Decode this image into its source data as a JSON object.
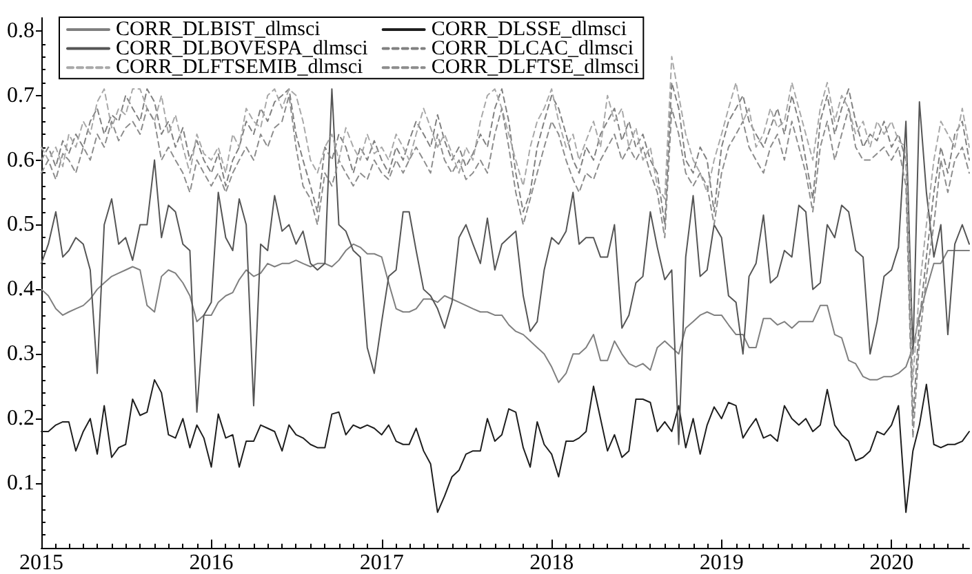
{
  "chart_data": {
    "type": "line",
    "x": [
      "2015-01-01",
      "2015-01-16",
      "2015-02-01",
      "2015-02-16",
      "2015-03-01",
      "2015-03-16",
      "2015-04-01",
      "2015-04-16",
      "2015-05-01",
      "2015-05-16",
      "2015-06-01",
      "2015-06-16",
      "2015-07-01",
      "2015-07-16",
      "2015-08-01",
      "2015-08-16",
      "2015-09-01",
      "2015-09-16",
      "2015-10-01",
      "2015-10-16",
      "2015-11-01",
      "2015-11-16",
      "2015-12-01",
      "2015-12-16",
      "2016-01-01",
      "2016-01-16",
      "2016-02-01",
      "2016-02-16",
      "2016-03-01",
      "2016-03-16",
      "2016-04-01",
      "2016-04-16",
      "2016-05-01",
      "2016-05-16",
      "2016-06-01",
      "2016-06-16",
      "2016-07-01",
      "2016-07-16",
      "2016-08-01",
      "2016-08-16",
      "2016-09-01",
      "2016-09-16",
      "2016-10-01",
      "2016-10-16",
      "2016-11-01",
      "2016-11-16",
      "2016-12-01",
      "2016-12-16",
      "2017-01-01",
      "2017-01-16",
      "2017-02-01",
      "2017-02-16",
      "2017-03-01",
      "2017-03-16",
      "2017-04-01",
      "2017-04-16",
      "2017-05-01",
      "2017-05-16",
      "2017-06-01",
      "2017-06-16",
      "2017-07-01",
      "2017-07-16",
      "2017-08-01",
      "2017-08-16",
      "2017-09-01",
      "2017-09-16",
      "2017-10-01",
      "2017-10-16",
      "2017-11-01",
      "2017-11-16",
      "2017-12-01",
      "2017-12-16",
      "2018-01-01",
      "2018-01-16",
      "2018-02-01",
      "2018-02-16",
      "2018-03-01",
      "2018-03-16",
      "2018-04-01",
      "2018-04-16",
      "2018-05-01",
      "2018-05-16",
      "2018-06-01",
      "2018-06-16",
      "2018-07-01",
      "2018-07-16",
      "2018-08-01",
      "2018-08-16",
      "2018-09-01",
      "2018-09-16",
      "2018-10-01",
      "2018-10-16",
      "2018-11-01",
      "2018-11-16",
      "2018-12-01",
      "2018-12-16",
      "2019-01-01",
      "2019-01-16",
      "2019-02-01",
      "2019-02-16",
      "2019-03-01",
      "2019-03-16",
      "2019-04-01",
      "2019-04-16",
      "2019-05-01",
      "2019-05-16",
      "2019-06-01",
      "2019-06-16",
      "2019-07-01",
      "2019-07-16",
      "2019-08-01",
      "2019-08-16",
      "2019-09-01",
      "2019-09-16",
      "2019-10-01",
      "2019-10-16",
      "2019-11-01",
      "2019-11-16",
      "2019-12-01",
      "2019-12-16",
      "2020-01-01",
      "2020-01-16",
      "2020-02-01",
      "2020-02-16",
      "2020-03-01",
      "2020-03-16",
      "2020-04-01",
      "2020-04-16",
      "2020-05-01",
      "2020-05-16",
      "2020-06-01",
      "2020-06-16"
    ],
    "series": [
      {
        "name": "CORR_DLBIST_dlmsci",
        "color": "#7f7f7f",
        "line_style": "solid",
        "values": [
          0.4,
          0.39,
          0.37,
          0.36,
          0.365,
          0.37,
          0.375,
          0.385,
          0.4,
          0.41,
          0.42,
          0.425,
          0.43,
          0.435,
          0.43,
          0.375,
          0.365,
          0.42,
          0.43,
          0.425,
          0.41,
          0.39,
          0.35,
          0.36,
          0.36,
          0.38,
          0.39,
          0.395,
          0.415,
          0.43,
          0.42,
          0.425,
          0.44,
          0.435,
          0.44,
          0.44,
          0.445,
          0.44,
          0.435,
          0.44,
          0.44,
          0.435,
          0.445,
          0.46,
          0.47,
          0.465,
          0.455,
          0.455,
          0.45,
          0.41,
          0.37,
          0.365,
          0.365,
          0.37,
          0.385,
          0.385,
          0.38,
          0.39,
          0.385,
          0.38,
          0.375,
          0.37,
          0.365,
          0.365,
          0.36,
          0.36,
          0.345,
          0.335,
          0.33,
          0.32,
          0.31,
          0.3,
          0.28,
          0.256,
          0.27,
          0.3,
          0.3,
          0.31,
          0.33,
          0.29,
          0.29,
          0.32,
          0.3,
          0.285,
          0.28,
          0.285,
          0.275,
          0.31,
          0.32,
          0.31,
          0.3,
          0.34,
          0.35,
          0.36,
          0.365,
          0.36,
          0.36,
          0.345,
          0.33,
          0.33,
          0.31,
          0.31,
          0.355,
          0.355,
          0.345,
          0.35,
          0.34,
          0.35,
          0.35,
          0.35,
          0.375,
          0.375,
          0.33,
          0.325,
          0.29,
          0.285,
          0.265,
          0.26,
          0.26,
          0.265,
          0.265,
          0.27,
          0.28,
          0.31,
          0.36,
          0.4,
          0.44,
          0.44,
          0.46,
          0.46,
          0.46,
          0.46
        ]
      },
      {
        "name": "CORR_DLSSE_dlmsci",
        "color": "#1e1e1e",
        "line_style": "solid",
        "values": [
          0.18,
          0.18,
          0.19,
          0.195,
          0.195,
          0.15,
          0.18,
          0.2,
          0.145,
          0.22,
          0.14,
          0.155,
          0.16,
          0.23,
          0.205,
          0.21,
          0.26,
          0.24,
          0.175,
          0.17,
          0.2,
          0.155,
          0.19,
          0.17,
          0.125,
          0.207,
          0.17,
          0.175,
          0.125,
          0.165,
          0.165,
          0.19,
          0.185,
          0.18,
          0.15,
          0.19,
          0.175,
          0.17,
          0.16,
          0.155,
          0.155,
          0.207,
          0.21,
          0.175,
          0.19,
          0.185,
          0.19,
          0.185,
          0.175,
          0.19,
          0.165,
          0.16,
          0.16,
          0.185,
          0.15,
          0.13,
          0.055,
          0.08,
          0.11,
          0.12,
          0.145,
          0.15,
          0.15,
          0.2,
          0.165,
          0.175,
          0.215,
          0.21,
          0.155,
          0.125,
          0.195,
          0.16,
          0.145,
          0.11,
          0.165,
          0.165,
          0.17,
          0.18,
          0.25,
          0.2,
          0.15,
          0.175,
          0.14,
          0.15,
          0.23,
          0.23,
          0.225,
          0.18,
          0.195,
          0.18,
          0.22,
          0.155,
          0.2,
          0.145,
          0.19,
          0.218,
          0.2,
          0.225,
          0.22,
          0.17,
          0.185,
          0.2,
          0.17,
          0.175,
          0.165,
          0.22,
          0.2,
          0.19,
          0.2,
          0.18,
          0.19,
          0.245,
          0.19,
          0.175,
          0.165,
          0.135,
          0.14,
          0.15,
          0.18,
          0.175,
          0.19,
          0.22,
          0.055,
          0.15,
          0.19,
          0.253,
          0.16,
          0.155,
          0.16,
          0.16,
          0.165,
          0.18
        ]
      },
      {
        "name": "CORR_DLBOVESPA_dlmsci",
        "color": "#555555",
        "line_style": "solid",
        "values": [
          0.44,
          0.47,
          0.52,
          0.45,
          0.46,
          0.48,
          0.47,
          0.43,
          0.27,
          0.5,
          0.54,
          0.47,
          0.48,
          0.445,
          0.5,
          0.5,
          0.6,
          0.48,
          0.53,
          0.52,
          0.47,
          0.46,
          0.21,
          0.36,
          0.38,
          0.55,
          0.48,
          0.46,
          0.54,
          0.5,
          0.22,
          0.47,
          0.46,
          0.545,
          0.49,
          0.5,
          0.47,
          0.49,
          0.44,
          0.43,
          0.44,
          0.71,
          0.5,
          0.49,
          0.46,
          0.45,
          0.31,
          0.27,
          0.35,
          0.42,
          0.43,
          0.52,
          0.52,
          0.46,
          0.4,
          0.39,
          0.37,
          0.34,
          0.38,
          0.48,
          0.5,
          0.47,
          0.44,
          0.51,
          0.43,
          0.47,
          0.48,
          0.49,
          0.39,
          0.335,
          0.35,
          0.43,
          0.48,
          0.47,
          0.49,
          0.55,
          0.47,
          0.48,
          0.48,
          0.45,
          0.45,
          0.5,
          0.34,
          0.36,
          0.41,
          0.42,
          0.52,
          0.465,
          0.415,
          0.43,
          0.16,
          0.45,
          0.545,
          0.42,
          0.43,
          0.5,
          0.48,
          0.39,
          0.38,
          0.3,
          0.42,
          0.44,
          0.515,
          0.41,
          0.42,
          0.46,
          0.45,
          0.53,
          0.52,
          0.4,
          0.41,
          0.5,
          0.48,
          0.53,
          0.52,
          0.46,
          0.45,
          0.3,
          0.35,
          0.42,
          0.43,
          0.465,
          0.66,
          0.3,
          0.69,
          0.55,
          0.45,
          0.5,
          0.33,
          0.47,
          0.5,
          0.47
        ]
      },
      {
        "name": "CORR_DLCAC_dlmsci",
        "color": "#808080",
        "line_style": "dashed",
        "values": [
          0.6,
          0.62,
          0.59,
          0.63,
          0.61,
          0.64,
          0.62,
          0.66,
          0.68,
          0.64,
          0.67,
          0.66,
          0.7,
          0.68,
          0.66,
          0.71,
          0.69,
          0.64,
          0.66,
          0.62,
          0.65,
          0.6,
          0.63,
          0.6,
          0.58,
          0.61,
          0.56,
          0.6,
          0.62,
          0.66,
          0.64,
          0.68,
          0.66,
          0.69,
          0.7,
          0.71,
          0.64,
          0.6,
          0.56,
          0.52,
          0.62,
          0.6,
          0.64,
          0.62,
          0.58,
          0.62,
          0.6,
          0.63,
          0.6,
          0.58,
          0.62,
          0.6,
          0.63,
          0.66,
          0.64,
          0.62,
          0.67,
          0.63,
          0.6,
          0.62,
          0.59,
          0.61,
          0.64,
          0.62,
          0.68,
          0.71,
          0.66,
          0.58,
          0.52,
          0.55,
          0.62,
          0.66,
          0.7,
          0.68,
          0.64,
          0.6,
          0.58,
          0.62,
          0.6,
          0.64,
          0.66,
          0.68,
          0.63,
          0.66,
          0.62,
          0.64,
          0.6,
          0.58,
          0.5,
          0.72,
          0.68,
          0.6,
          0.58,
          0.62,
          0.6,
          0.52,
          0.62,
          0.66,
          0.68,
          0.7,
          0.66,
          0.64,
          0.62,
          0.65,
          0.68,
          0.64,
          0.7,
          0.66,
          0.6,
          0.54,
          0.66,
          0.7,
          0.64,
          0.68,
          0.71,
          0.66,
          0.62,
          0.64,
          0.63,
          0.66,
          0.62,
          0.64,
          0.6,
          0.2,
          0.35,
          0.45,
          0.55,
          0.62,
          0.58,
          0.64,
          0.66,
          0.6
        ]
      },
      {
        "name": "CORR_DLFTSEMIB_dlmsci",
        "color": "#a8a8a8",
        "line_style": "dashed",
        "values": [
          0.62,
          0.6,
          0.62,
          0.59,
          0.64,
          0.62,
          0.66,
          0.64,
          0.69,
          0.71,
          0.65,
          0.68,
          0.67,
          0.71,
          0.71,
          0.68,
          0.66,
          0.7,
          0.64,
          0.67,
          0.62,
          0.58,
          0.64,
          0.61,
          0.6,
          0.62,
          0.58,
          0.64,
          0.62,
          0.68,
          0.66,
          0.65,
          0.7,
          0.71,
          0.68,
          0.71,
          0.7,
          0.66,
          0.6,
          0.58,
          0.62,
          0.64,
          0.6,
          0.65,
          0.62,
          0.6,
          0.64,
          0.61,
          0.62,
          0.6,
          0.64,
          0.62,
          0.6,
          0.64,
          0.68,
          0.65,
          0.62,
          0.64,
          0.61,
          0.58,
          0.62,
          0.6,
          0.66,
          0.7,
          0.71,
          0.68,
          0.64,
          0.6,
          0.56,
          0.62,
          0.66,
          0.68,
          0.71,
          0.66,
          0.62,
          0.64,
          0.6,
          0.63,
          0.66,
          0.62,
          0.7,
          0.66,
          0.68,
          0.62,
          0.65,
          0.6,
          0.62,
          0.56,
          0.54,
          0.76,
          0.7,
          0.64,
          0.6,
          0.58,
          0.55,
          0.6,
          0.64,
          0.68,
          0.72,
          0.66,
          0.68,
          0.62,
          0.64,
          0.68,
          0.65,
          0.66,
          0.72,
          0.68,
          0.64,
          0.6,
          0.68,
          0.72,
          0.66,
          0.7,
          0.68,
          0.64,
          0.66,
          0.62,
          0.66,
          0.64,
          0.66,
          0.63,
          0.62,
          0.26,
          0.4,
          0.5,
          0.6,
          0.66,
          0.64,
          0.62,
          0.68,
          0.62
        ]
      },
      {
        "name": "CORR_DLFTSE_dlmsci",
        "color": "#8c8c8c",
        "line_style": "dashed",
        "values": [
          0.58,
          0.6,
          0.57,
          0.61,
          0.6,
          0.58,
          0.62,
          0.6,
          0.64,
          0.62,
          0.66,
          0.63,
          0.65,
          0.66,
          0.64,
          0.68,
          0.66,
          0.6,
          0.62,
          0.6,
          0.58,
          0.55,
          0.6,
          0.58,
          0.56,
          0.58,
          0.55,
          0.58,
          0.6,
          0.62,
          0.6,
          0.64,
          0.62,
          0.65,
          0.66,
          0.7,
          0.62,
          0.56,
          0.54,
          0.5,
          0.58,
          0.56,
          0.6,
          0.58,
          0.56,
          0.58,
          0.57,
          0.6,
          0.58,
          0.57,
          0.6,
          0.58,
          0.6,
          0.62,
          0.6,
          0.58,
          0.64,
          0.6,
          0.58,
          0.6,
          0.57,
          0.58,
          0.6,
          0.58,
          0.64,
          0.68,
          0.62,
          0.55,
          0.5,
          0.54,
          0.58,
          0.62,
          0.66,
          0.64,
          0.6,
          0.57,
          0.55,
          0.58,
          0.57,
          0.6,
          0.62,
          0.64,
          0.6,
          0.62,
          0.6,
          0.62,
          0.58,
          0.55,
          0.48,
          0.68,
          0.64,
          0.58,
          0.56,
          0.58,
          0.56,
          0.5,
          0.58,
          0.62,
          0.64,
          0.66,
          0.62,
          0.6,
          0.58,
          0.62,
          0.64,
          0.6,
          0.66,
          0.62,
          0.58,
          0.52,
          0.62,
          0.66,
          0.6,
          0.64,
          0.68,
          0.62,
          0.6,
          0.6,
          0.61,
          0.62,
          0.6,
          0.62,
          0.56,
          0.17,
          0.32,
          0.42,
          0.5,
          0.6,
          0.55,
          0.6,
          0.62,
          0.58
        ]
      }
    ],
    "xlim": [
      "2015-01-01",
      "2020-06-16"
    ],
    "ylim": [
      0,
      0.82
    ],
    "xticks": [
      {
        "value": "2015",
        "label": "2015"
      },
      {
        "value": "2015-02",
        "label": null
      },
      {
        "value": "2015-03",
        "label": null
      },
      {
        "value": "2015-04",
        "label": null
      },
      {
        "value": "2015-05",
        "label": null
      },
      {
        "value": "2015-06",
        "label": null
      },
      {
        "value": "2015-07",
        "label": null
      },
      {
        "value": "2015-08",
        "label": null
      },
      {
        "value": "2015-09",
        "label": null
      },
      {
        "value": "2015-10",
        "label": null
      },
      {
        "value": "2015-11",
        "label": null
      },
      {
        "value": "2015-12",
        "label": null
      },
      {
        "value": "2016",
        "label": "2016"
      },
      {
        "value": "2016-02",
        "label": null
      },
      {
        "value": "2016-03",
        "label": null
      },
      {
        "value": "2016-04",
        "label": null
      },
      {
        "value": "2016-05",
        "label": null
      },
      {
        "value": "2016-06",
        "label": null
      },
      {
        "value": "2016-07",
        "label": null
      },
      {
        "value": "2016-08",
        "label": null
      },
      {
        "value": "2016-09",
        "label": null
      },
      {
        "value": "2016-10",
        "label": null
      },
      {
        "value": "2016-11",
        "label": null
      },
      {
        "value": "2016-12",
        "label": null
      },
      {
        "value": "2017",
        "label": "2017"
      },
      {
        "value": "2017-02",
        "label": null
      },
      {
        "value": "2017-03",
        "label": null
      },
      {
        "value": "2017-04",
        "label": null
      },
      {
        "value": "2017-05",
        "label": null
      },
      {
        "value": "2017-06",
        "label": null
      },
      {
        "value": "2017-07",
        "label": null
      },
      {
        "value": "2017-08",
        "label": null
      },
      {
        "value": "2017-09",
        "label": null
      },
      {
        "value": "2017-10",
        "label": null
      },
      {
        "value": "2017-11",
        "label": null
      },
      {
        "value": "2017-12",
        "label": null
      },
      {
        "value": "2018",
        "label": "2018"
      },
      {
        "value": "2018-02",
        "label": null
      },
      {
        "value": "2018-03",
        "label": null
      },
      {
        "value": "2018-04",
        "label": null
      },
      {
        "value": "2018-05",
        "label": null
      },
      {
        "value": "2018-06",
        "label": null
      },
      {
        "value": "2018-07",
        "label": null
      },
      {
        "value": "2018-08",
        "label": null
      },
      {
        "value": "2018-09",
        "label": null
      },
      {
        "value": "2018-10",
        "label": null
      },
      {
        "value": "2018-11",
        "label": null
      },
      {
        "value": "2018-12",
        "label": null
      },
      {
        "value": "2019",
        "label": "2019"
      },
      {
        "value": "2019-02",
        "label": null
      },
      {
        "value": "2019-03",
        "label": null
      },
      {
        "value": "2019-04",
        "label": null
      },
      {
        "value": "2019-05",
        "label": null
      },
      {
        "value": "2019-06",
        "label": null
      },
      {
        "value": "2019-07",
        "label": null
      },
      {
        "value": "2019-08",
        "label": null
      },
      {
        "value": "2019-09",
        "label": null
      },
      {
        "value": "2019-10",
        "label": null
      },
      {
        "value": "2019-11",
        "label": null
      },
      {
        "value": "2019-12",
        "label": null
      },
      {
        "value": "2020",
        "label": "2020"
      },
      {
        "value": "2020-02",
        "label": null
      },
      {
        "value": "2020-03",
        "label": null
      },
      {
        "value": "2020-04",
        "label": null
      },
      {
        "value": "2020-05",
        "label": null
      },
      {
        "value": "2020-06",
        "label": null
      }
    ],
    "yticks": [
      {
        "value": 0.02,
        "label": null
      },
      {
        "value": 0.04,
        "label": null
      },
      {
        "value": 0.06,
        "label": null
      },
      {
        "value": 0.08,
        "label": null
      },
      0.1,
      {
        "value": 0.12,
        "label": null
      },
      {
        "value": 0.14,
        "label": null
      },
      {
        "value": 0.16,
        "label": null
      },
      {
        "value": 0.18,
        "label": null
      },
      0.2,
      {
        "value": 0.22,
        "label": null
      },
      {
        "value": 0.24,
        "label": null
      },
      {
        "value": 0.26,
        "label": null
      },
      {
        "value": 0.28,
        "label": null
      },
      0.3,
      {
        "value": 0.32,
        "label": null
      },
      {
        "value": 0.34,
        "label": null
      },
      {
        "value": 0.36,
        "label": null
      },
      {
        "value": 0.38,
        "label": null
      },
      0.4,
      {
        "value": 0.42,
        "label": null
      },
      {
        "value": 0.44,
        "label": null
      },
      {
        "value": 0.46,
        "label": null
      },
      {
        "value": 0.48,
        "label": null
      },
      0.5,
      {
        "value": 0.52,
        "label": null
      },
      {
        "value": 0.54,
        "label": null
      },
      {
        "value": 0.56,
        "label": null
      },
      {
        "value": 0.58,
        "label": null
      },
      0.6,
      {
        "value": 0.62,
        "label": null
      },
      {
        "value": 0.64,
        "label": null
      },
      {
        "value": 0.66,
        "label": null
      },
      {
        "value": 0.68,
        "label": null
      },
      0.7,
      {
        "value": 0.72,
        "label": null
      },
      {
        "value": 0.74,
        "label": null
      },
      {
        "value": 0.76,
        "label": null
      },
      {
        "value": 0.78,
        "label": null
      },
      0.8
    ],
    "legend": "top left",
    "grid": false,
    "marker": "none"
  }
}
